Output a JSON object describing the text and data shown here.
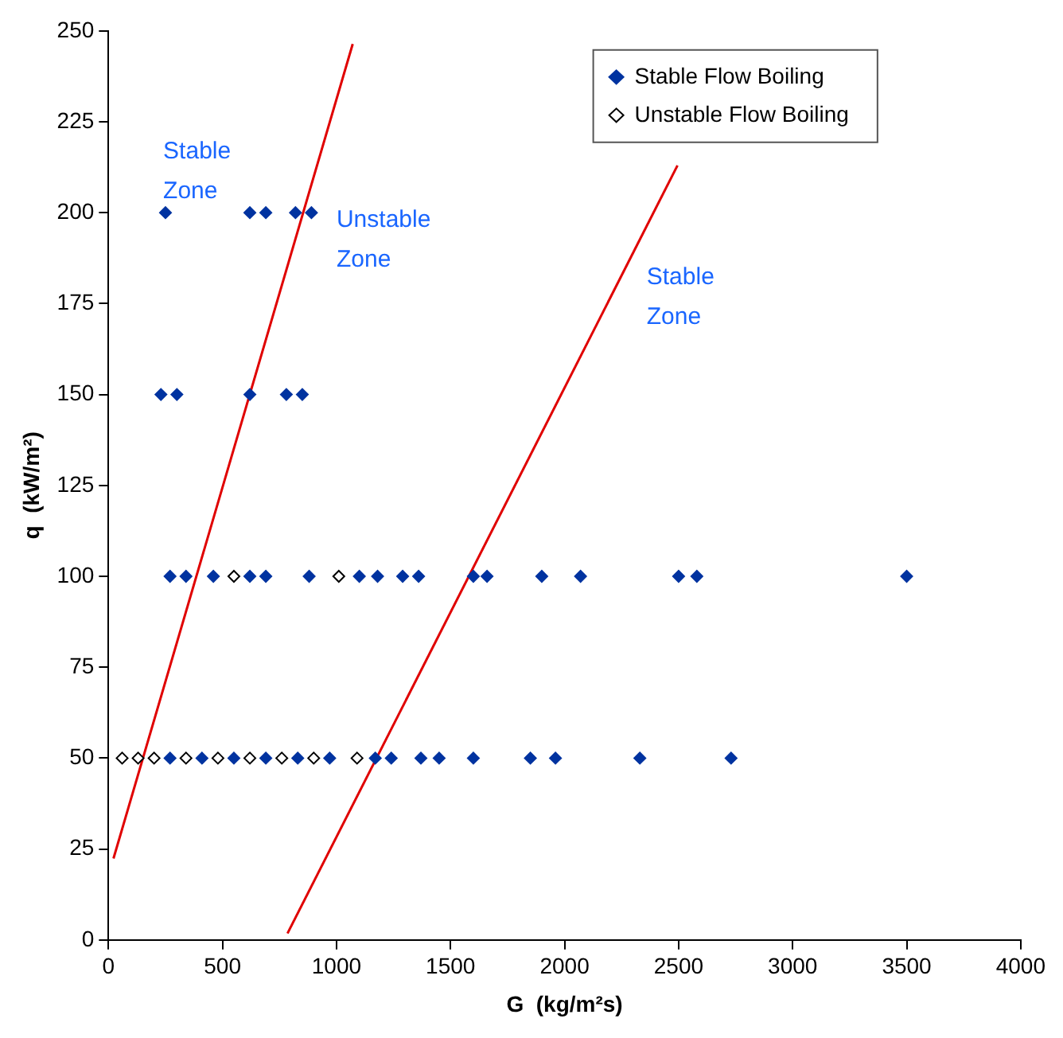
{
  "chart_data": {
    "type": "scatter",
    "xlabel": "G  (kg/m²s)",
    "ylabel": "q  (kW/m²)",
    "xlim": [
      0,
      4000
    ],
    "xticks": [
      0,
      500,
      1000,
      1500,
      2000,
      2500,
      3000,
      3500,
      4000
    ],
    "ylim": [
      0,
      250
    ],
    "yticks": [
      0,
      25,
      50,
      75,
      100,
      125,
      150,
      175,
      200,
      225,
      250
    ],
    "grid": false,
    "legend": "top right",
    "marker": "diamond",
    "series": [
      {
        "name": "Stable Flow Boiling",
        "color": "#0033a0",
        "x": [
          270,
          410,
          550,
          690,
          830,
          970,
          1170,
          1240,
          1370,
          1450,
          1600,
          1850,
          1960,
          2330,
          2730,
          270,
          340,
          460,
          620,
          690,
          880,
          1100,
          1180,
          1290,
          1360,
          1600,
          1660,
          1900,
          2070,
          2500,
          2580,
          3500,
          230,
          300,
          620,
          780,
          850,
          250,
          620,
          690,
          820,
          890
        ],
        "values": [
          50,
          50,
          50,
          50,
          50,
          50,
          50,
          50,
          50,
          50,
          50,
          50,
          50,
          50,
          50,
          100,
          100,
          100,
          100,
          100,
          100,
          100,
          100,
          100,
          100,
          100,
          100,
          100,
          100,
          100,
          100,
          100,
          150,
          150,
          150,
          150,
          150,
          200,
          200,
          200,
          200,
          200
        ]
      },
      {
        "name": "Unstable Flow Boiling",
        "color": "#000000",
        "x": [
          60,
          130,
          200,
          340,
          480,
          620,
          760,
          900,
          1090,
          550,
          1010
        ],
        "values": [
          50,
          50,
          50,
          50,
          50,
          50,
          50,
          50,
          50,
          100,
          100
        ]
      },
      {
        "type": "line",
        "color": "#e00000",
        "marker": "none",
        "x": [
          22,
          1071
        ],
        "values": [
          22.4,
          246.4
        ]
      },
      {
        "type": "line",
        "color": "#e00000",
        "marker": "none",
        "x": [
          785,
          2495
        ],
        "values": [
          1.8,
          213
        ]
      }
    ],
    "annotations": [
      "Stable Zone",
      "Unstable Zone",
      "Stable Zone"
    ]
  }
}
